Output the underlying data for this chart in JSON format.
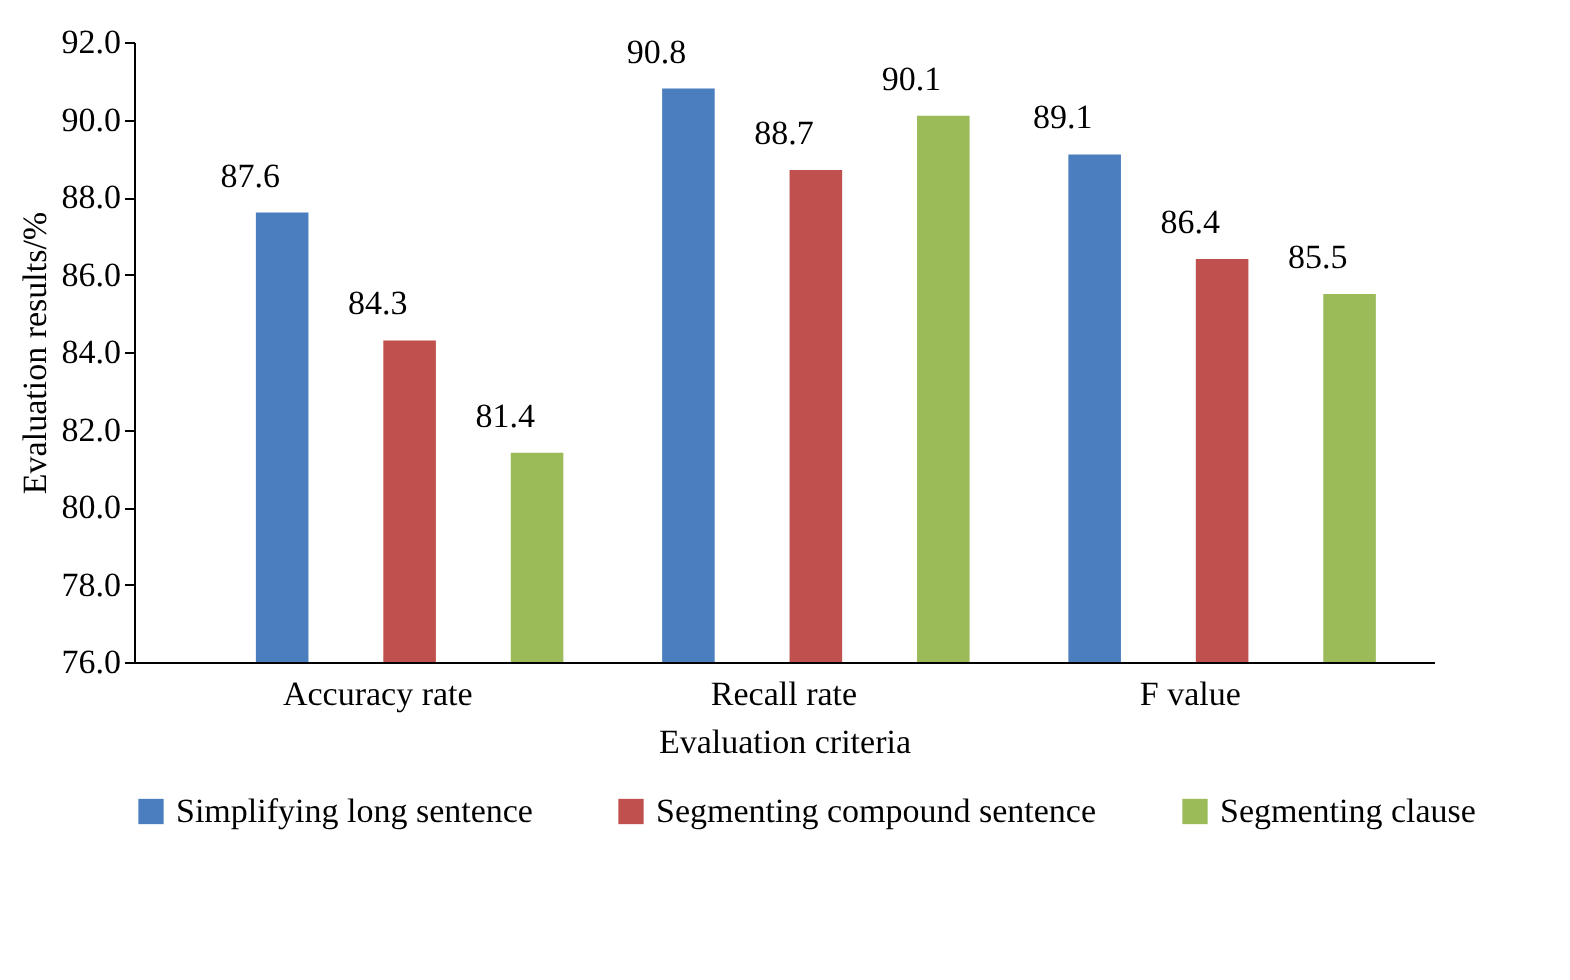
{
  "chart_data": {
    "type": "bar",
    "xlabel": "Evaluation criteria",
    "ylabel": "Evaluation results/%",
    "categories": [
      "Accuracy rate",
      "Recall rate",
      "F value"
    ],
    "series": [
      {
        "name": "Simplifying long sentence",
        "color": "#4a7ebf",
        "values": [
          87.6,
          90.8,
          89.1
        ]
      },
      {
        "name": "Segmenting compound sentence",
        "color": "#c0504d",
        "values": [
          84.3,
          88.7,
          86.4
        ]
      },
      {
        "name": "Segmenting clause",
        "color": "#9bbb59",
        "values": [
          81.4,
          90.1,
          85.5
        ]
      }
    ],
    "ylim": [
      76,
      92
    ],
    "yticks": [
      {
        "value": 76,
        "label": "76.0"
      },
      {
        "value": 78,
        "label": "78.0"
      },
      {
        "value": 80,
        "label": "80.0"
      },
      {
        "value": 82,
        "label": "82.0"
      },
      {
        "value": 84,
        "label": "84.0"
      },
      {
        "value": 86,
        "label": "86.0"
      },
      {
        "value": 88,
        "label": "88.0"
      },
      {
        "value": 90,
        "label": "90.0"
      },
      {
        "value": 92,
        "label": "92.0"
      }
    ],
    "data_labels": true,
    "grid": false,
    "legend": "bottom"
  }
}
